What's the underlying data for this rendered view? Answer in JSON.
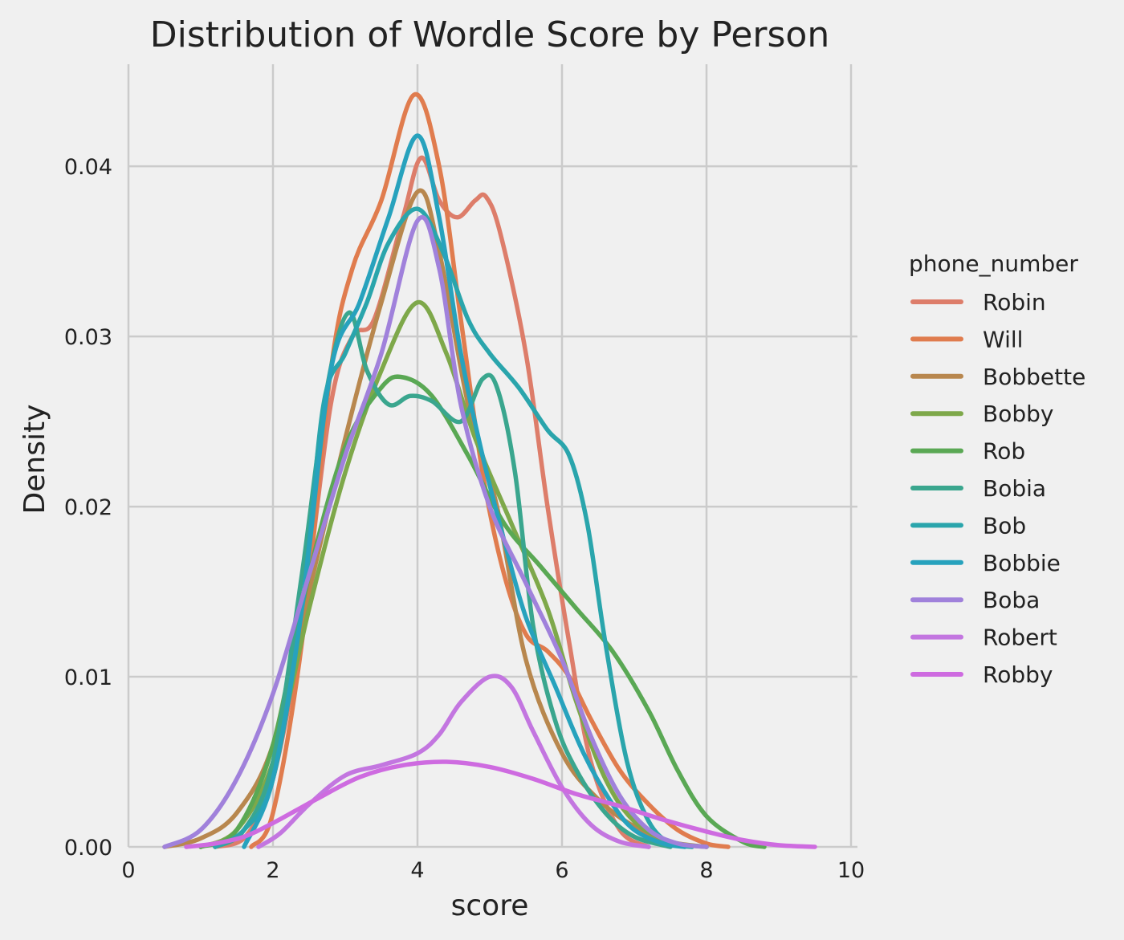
{
  "chart_data": {
    "type": "line",
    "title": "Distribution of Wordle Score by Person",
    "xlabel": "score",
    "ylabel": "Density",
    "xlim": [
      0,
      10
    ],
    "ylim": [
      0,
      0.046
    ],
    "xticks": [
      0,
      2,
      4,
      6,
      8,
      10
    ],
    "yticks": [
      0.0,
      0.01,
      0.02,
      0.03,
      0.04
    ],
    "xtick_labels": [
      "0",
      "2",
      "4",
      "6",
      "8",
      "10"
    ],
    "ytick_labels": [
      "0.00",
      "0.01",
      "0.02",
      "0.03",
      "0.04"
    ],
    "grid": true,
    "legend": {
      "title": "phone_number",
      "placement": "right"
    },
    "series": [
      {
        "name": "Robin",
        "color": "#dd7d6a",
        "points": [
          [
            1.2,
            0
          ],
          [
            1.6,
            0.0005
          ],
          [
            2.0,
            0.004
          ],
          [
            2.4,
            0.013
          ],
          [
            2.8,
            0.026
          ],
          [
            3.1,
            0.03
          ],
          [
            3.4,
            0.031
          ],
          [
            3.8,
            0.037
          ],
          [
            4.05,
            0.0405
          ],
          [
            4.3,
            0.038
          ],
          [
            4.55,
            0.037
          ],
          [
            4.8,
            0.038
          ],
          [
            4.95,
            0.0382
          ],
          [
            5.15,
            0.036
          ],
          [
            5.5,
            0.029
          ],
          [
            5.8,
            0.02
          ],
          [
            6.1,
            0.012
          ],
          [
            6.4,
            0.005
          ],
          [
            6.8,
            0.001
          ],
          [
            7.2,
            0
          ]
        ]
      },
      {
        "name": "Will",
        "color": "#e07c4e",
        "points": [
          [
            1.7,
            0
          ],
          [
            2.0,
            0.002
          ],
          [
            2.4,
            0.012
          ],
          [
            2.8,
            0.028
          ],
          [
            3.1,
            0.034
          ],
          [
            3.5,
            0.038
          ],
          [
            3.95,
            0.0442
          ],
          [
            4.3,
            0.04
          ],
          [
            4.6,
            0.031
          ],
          [
            4.9,
            0.022
          ],
          [
            5.2,
            0.016
          ],
          [
            5.5,
            0.0125
          ],
          [
            5.8,
            0.0115
          ],
          [
            6.1,
            0.01
          ],
          [
            6.4,
            0.0075
          ],
          [
            6.8,
            0.0045
          ],
          [
            7.2,
            0.0025
          ],
          [
            7.6,
            0.001
          ],
          [
            8.0,
            0.0002
          ],
          [
            8.3,
            0
          ]
        ]
      },
      {
        "name": "Bobbette",
        "color": "#b8874e",
        "points": [
          [
            0.5,
            0
          ],
          [
            1.0,
            0.0005
          ],
          [
            1.5,
            0.002
          ],
          [
            2.0,
            0.006
          ],
          [
            2.5,
            0.015
          ],
          [
            3.0,
            0.024
          ],
          [
            3.5,
            0.032
          ],
          [
            4.0,
            0.0385
          ],
          [
            4.3,
            0.035
          ],
          [
            4.7,
            0.026
          ],
          [
            5.1,
            0.02
          ],
          [
            5.5,
            0.011
          ],
          [
            6.0,
            0.0055
          ],
          [
            6.5,
            0.0028
          ],
          [
            7.0,
            0.0012
          ],
          [
            7.5,
            0.0003
          ],
          [
            8.0,
            0
          ]
        ]
      },
      {
        "name": "Bobby",
        "color": "#7ea84a",
        "points": [
          [
            1.0,
            0
          ],
          [
            1.5,
            0.001
          ],
          [
            2.0,
            0.005
          ],
          [
            2.5,
            0.014
          ],
          [
            3.0,
            0.022
          ],
          [
            3.5,
            0.028
          ],
          [
            4.0,
            0.032
          ],
          [
            4.4,
            0.029
          ],
          [
            4.8,
            0.024
          ],
          [
            5.3,
            0.019
          ],
          [
            5.8,
            0.014
          ],
          [
            6.2,
            0.0085
          ],
          [
            6.6,
            0.004
          ],
          [
            7.0,
            0.0015
          ],
          [
            7.5,
            0.0003
          ],
          [
            8.0,
            0
          ]
        ]
      },
      {
        "name": "Rob",
        "color": "#5aa854",
        "points": [
          [
            1.0,
            0
          ],
          [
            1.5,
            0.001
          ],
          [
            2.0,
            0.006
          ],
          [
            2.5,
            0.016
          ],
          [
            3.0,
            0.0235
          ],
          [
            3.5,
            0.027
          ],
          [
            3.8,
            0.0276
          ],
          [
            4.2,
            0.0265
          ],
          [
            4.7,
            0.023
          ],
          [
            5.2,
            0.019
          ],
          [
            5.7,
            0.0165
          ],
          [
            6.2,
            0.014
          ],
          [
            6.7,
            0.0115
          ],
          [
            7.2,
            0.008
          ],
          [
            7.6,
            0.0045
          ],
          [
            8.0,
            0.0018
          ],
          [
            8.5,
            0.0003
          ],
          [
            8.8,
            0
          ]
        ]
      },
      {
        "name": "Bobia",
        "color": "#3aa68e",
        "points": [
          [
            1.2,
            0
          ],
          [
            1.6,
            0.001
          ],
          [
            2.0,
            0.005
          ],
          [
            2.4,
            0.016
          ],
          [
            2.75,
            0.027
          ],
          [
            3.05,
            0.0314
          ],
          [
            3.3,
            0.028
          ],
          [
            3.6,
            0.026
          ],
          [
            3.9,
            0.0265
          ],
          [
            4.2,
            0.0262
          ],
          [
            4.6,
            0.025
          ],
          [
            4.9,
            0.0275
          ],
          [
            5.1,
            0.027
          ],
          [
            5.35,
            0.022
          ],
          [
            5.6,
            0.013
          ],
          [
            5.9,
            0.0075
          ],
          [
            6.2,
            0.0045
          ],
          [
            6.6,
            0.002
          ],
          [
            7.0,
            0.0006
          ],
          [
            7.5,
            0
          ]
        ]
      },
      {
        "name": "Bob",
        "color": "#2aa5ac",
        "points": [
          [
            1.2,
            0
          ],
          [
            1.6,
            0.001
          ],
          [
            2.0,
            0.004
          ],
          [
            2.4,
            0.014
          ],
          [
            2.7,
            0.026
          ],
          [
            3.0,
            0.029
          ],
          [
            3.3,
            0.032
          ],
          [
            3.6,
            0.0355
          ],
          [
            4.0,
            0.0375
          ],
          [
            4.35,
            0.035
          ],
          [
            4.7,
            0.031
          ],
          [
            5.0,
            0.029
          ],
          [
            5.4,
            0.027
          ],
          [
            5.8,
            0.0245
          ],
          [
            6.1,
            0.023
          ],
          [
            6.35,
            0.019
          ],
          [
            6.6,
            0.012
          ],
          [
            6.9,
            0.005
          ],
          [
            7.2,
            0.0015
          ],
          [
            7.5,
            0.0002
          ],
          [
            7.8,
            0
          ]
        ]
      },
      {
        "name": "Bobbie",
        "color": "#27a2bd",
        "points": [
          [
            1.6,
            0
          ],
          [
            2.0,
            0.004
          ],
          [
            2.4,
            0.014
          ],
          [
            2.8,
            0.028
          ],
          [
            3.2,
            0.032
          ],
          [
            3.6,
            0.037
          ],
          [
            4.0,
            0.0418
          ],
          [
            4.3,
            0.037
          ],
          [
            4.6,
            0.029
          ],
          [
            4.9,
            0.023
          ],
          [
            5.2,
            0.018
          ],
          [
            5.5,
            0.0135
          ],
          [
            5.9,
            0.0095
          ],
          [
            6.3,
            0.0055
          ],
          [
            6.7,
            0.0025
          ],
          [
            7.0,
            0.001
          ],
          [
            7.4,
            0.0002
          ],
          [
            7.7,
            0
          ]
        ]
      },
      {
        "name": "Boba",
        "color": "#a081db",
        "points": [
          [
            0.5,
            0
          ],
          [
            1.0,
            0.001
          ],
          [
            1.5,
            0.004
          ],
          [
            2.0,
            0.009
          ],
          [
            2.5,
            0.016
          ],
          [
            3.0,
            0.023
          ],
          [
            3.5,
            0.029
          ],
          [
            4.0,
            0.0368
          ],
          [
            4.3,
            0.034
          ],
          [
            4.6,
            0.026
          ],
          [
            5.0,
            0.02
          ],
          [
            5.5,
            0.0155
          ],
          [
            6.0,
            0.011
          ],
          [
            6.4,
            0.0065
          ],
          [
            6.8,
            0.003
          ],
          [
            7.2,
            0.001
          ],
          [
            7.6,
            0.0002
          ],
          [
            8.0,
            0
          ]
        ]
      },
      {
        "name": "Robert",
        "color": "#c376e0",
        "points": [
          [
            1.8,
            0
          ],
          [
            2.1,
            0.0008
          ],
          [
            2.5,
            0.0025
          ],
          [
            3.0,
            0.0042
          ],
          [
            3.5,
            0.0048
          ],
          [
            4.0,
            0.0055
          ],
          [
            4.3,
            0.0066
          ],
          [
            4.6,
            0.0085
          ],
          [
            5.0,
            0.01
          ],
          [
            5.3,
            0.0094
          ],
          [
            5.6,
            0.0068
          ],
          [
            6.0,
            0.0035
          ],
          [
            6.4,
            0.0013
          ],
          [
            6.8,
            0.0003
          ],
          [
            7.2,
            0
          ]
        ]
      },
      {
        "name": "Robby",
        "color": "#ce6be0",
        "points": [
          [
            0.8,
            0
          ],
          [
            1.2,
            0.0002
          ],
          [
            1.6,
            0.0006
          ],
          [
            2.0,
            0.0014
          ],
          [
            2.6,
            0.0028
          ],
          [
            3.2,
            0.0041
          ],
          [
            3.8,
            0.0048
          ],
          [
            4.4,
            0.005
          ],
          [
            5.0,
            0.0047
          ],
          [
            5.6,
            0.004
          ],
          [
            6.2,
            0.0031
          ],
          [
            6.8,
            0.0024
          ],
          [
            7.4,
            0.0016
          ],
          [
            8.0,
            0.0009
          ],
          [
            8.5,
            0.0004
          ],
          [
            9.0,
            0.0001
          ],
          [
            9.5,
            0
          ]
        ]
      }
    ]
  }
}
